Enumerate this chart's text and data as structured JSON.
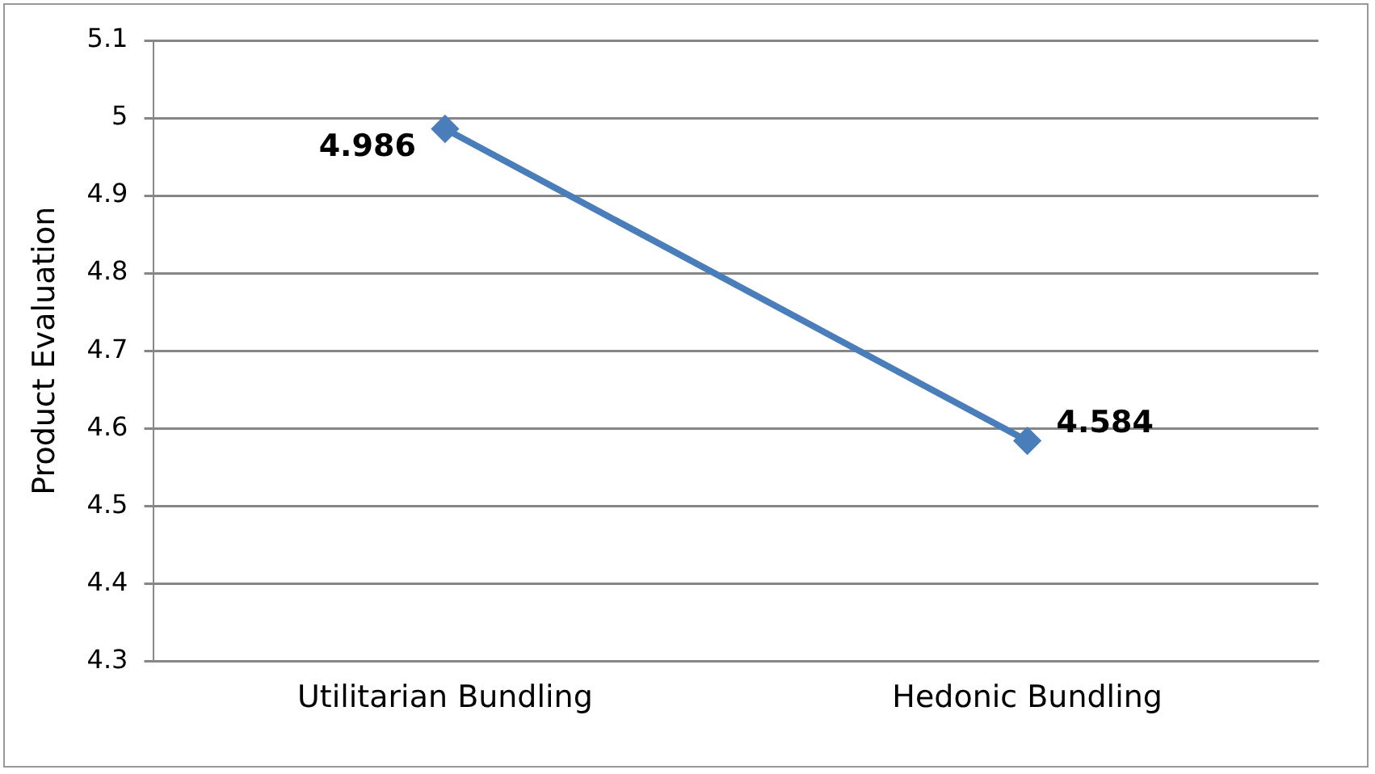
{
  "chart_data": {
    "type": "line",
    "ylabel": "Product Evaluation",
    "categories": [
      "Utilitarian Bundling",
      "Hedonic Bundling"
    ],
    "series": [
      {
        "color": "#4a7ebb",
        "values": [
          4.986,
          4.584
        ]
      }
    ],
    "ylim": [
      4.3,
      5.1
    ],
    "yticks": [
      4.3,
      4.4,
      4.5,
      4.6,
      4.7,
      4.8,
      4.9,
      5,
      5.1
    ],
    "grid": "y",
    "legend": false,
    "marker": "diamond",
    "line_style": "solid",
    "data_labels": true
  }
}
